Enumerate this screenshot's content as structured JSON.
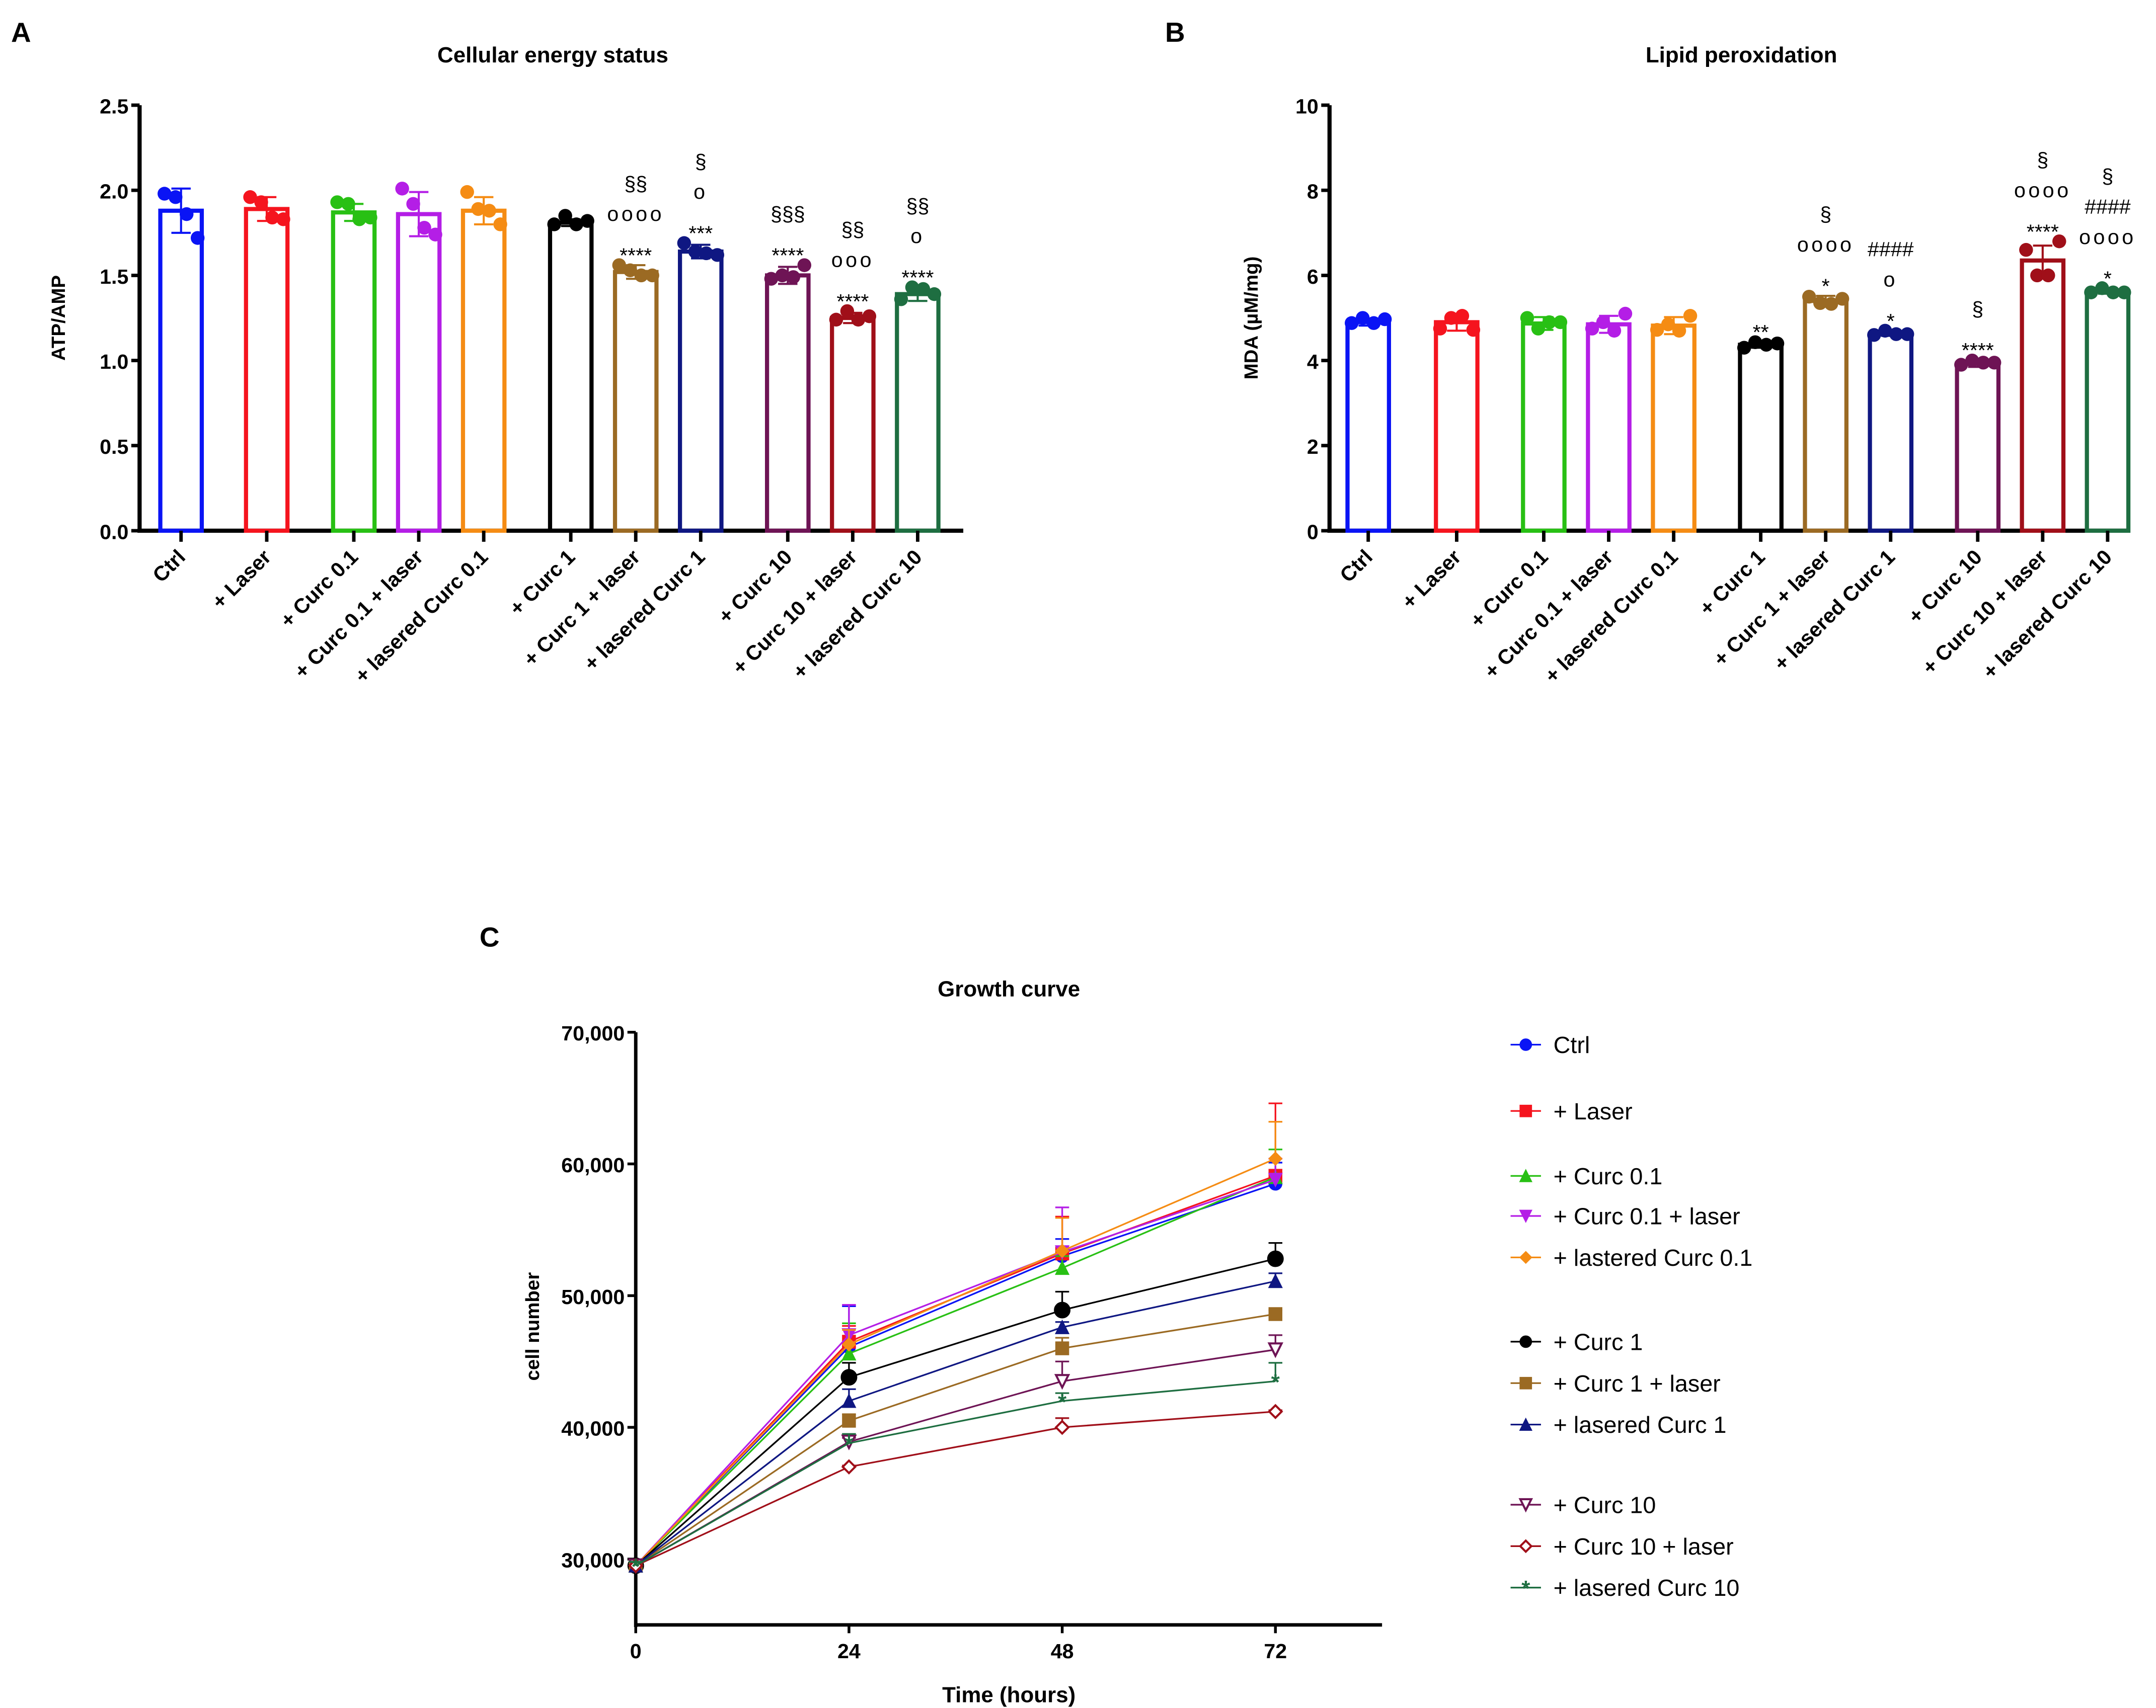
{
  "chart_data": [
    {
      "panel": "A",
      "type": "bar",
      "title": "Cellular energy status",
      "xlabel": "",
      "ylabel": "ATP/AMP",
      "ylim": [
        0,
        2.5
      ],
      "yticks": [
        "0.0",
        "0.5",
        "1.0",
        "1.5",
        "2.0",
        "2.5"
      ],
      "categories": [
        "Ctrl",
        "+ Laser",
        "+ Curc 0.1",
        "+ Curc 0.1 + laser",
        "+ lasered Curc 0.1",
        "+ Curc 1",
        "+ Curc 1 + laser",
        "+ lasered Curc 1",
        "+ Curc 10",
        "+ Curc 10 + laser",
        "+ lasered Curc 10"
      ],
      "values": [
        1.88,
        1.89,
        1.87,
        1.86,
        1.88,
        1.81,
        1.52,
        1.64,
        1.5,
        1.25,
        1.39
      ],
      "sd": [
        0.13,
        0.07,
        0.05,
        0.13,
        0.08,
        0.02,
        0.04,
        0.04,
        0.05,
        0.03,
        0.04
      ],
      "points": [
        [
          1.98,
          1.96,
          1.86,
          1.72
        ],
        [
          1.96,
          1.93,
          1.84,
          1.83
        ],
        [
          1.93,
          1.92,
          1.83,
          1.84
        ],
        [
          2.01,
          1.92,
          1.78,
          1.74
        ],
        [
          1.99,
          1.89,
          1.88,
          1.8
        ],
        [
          1.8,
          1.85,
          1.8,
          1.82
        ],
        [
          1.56,
          1.53,
          1.5,
          1.5
        ],
        [
          1.69,
          1.64,
          1.63,
          1.62
        ],
        [
          1.48,
          1.5,
          1.49,
          1.56
        ],
        [
          1.24,
          1.29,
          1.24,
          1.26
        ],
        [
          1.36,
          1.43,
          1.42,
          1.39
        ]
      ],
      "annotations": [
        [],
        [],
        [],
        [],
        [],
        [],
        [
          "§§",
          "oooo",
          "****"
        ],
        [
          "§",
          "o",
          "***"
        ],
        [
          "§§§",
          "****"
        ],
        [
          "§§",
          "ooo",
          "****"
        ],
        [
          "§§",
          "o",
          "****"
        ]
      ]
    },
    {
      "panel": "B",
      "type": "bar",
      "title": "Lipid peroxidation",
      "xlabel": "",
      "ylabel": "MDA (µM/mg)",
      "ylim": [
        0,
        10
      ],
      "yticks": [
        "0",
        "2",
        "4",
        "6",
        "8",
        "10"
      ],
      "categories": [
        "Ctrl",
        "+ Laser",
        "+ Curc 0.1",
        "+ Curc 0.1 + laser",
        "+ lasered Curc 0.1",
        "+ Curc 1",
        "+ Curc 1 + laser",
        "+ lasered Curc 1",
        "+ Curc 10",
        "+ Curc 10 + laser",
        "+ lasered Curc 10"
      ],
      "values": [
        4.9,
        4.9,
        4.87,
        4.85,
        4.82,
        4.37,
        5.4,
        4.63,
        3.93,
        6.35,
        5.63
      ],
      "sd": [
        0.08,
        0.2,
        0.15,
        0.2,
        0.2,
        0.07,
        0.12,
        0.05,
        0.08,
        0.35,
        0.06
      ],
      "points": [
        [
          4.88,
          5.0,
          4.88,
          4.97
        ],
        [
          4.75,
          5.0,
          5.05,
          4.72
        ],
        [
          5.0,
          4.75,
          4.9,
          4.9
        ],
        [
          4.75,
          4.9,
          4.7,
          5.1
        ],
        [
          4.72,
          4.85,
          4.7,
          5.05
        ],
        [
          4.3,
          4.43,
          4.37,
          4.4
        ],
        [
          5.5,
          5.35,
          5.33,
          5.45
        ],
        [
          4.6,
          4.7,
          4.62,
          4.62
        ],
        [
          3.9,
          4.0,
          3.95,
          3.95
        ],
        [
          6.6,
          6.0,
          6.0,
          6.8
        ],
        [
          5.6,
          5.7,
          5.6,
          5.6
        ]
      ],
      "annotations": [
        [],
        [],
        [],
        [],
        [],
        [
          "**"
        ],
        [
          "§",
          "oooo",
          "*"
        ],
        [
          "####",
          "o",
          "*"
        ],
        [
          "§",
          "****"
        ],
        [
          "§",
          "oooo",
          "****"
        ],
        [
          "§",
          "####",
          "oooo",
          "*"
        ]
      ]
    },
    {
      "panel": "C",
      "type": "line",
      "title": "Growth curve",
      "xlabel": "Time (hours)",
      "ylabel": "cell number",
      "xlim": [
        0,
        84
      ],
      "ylim": [
        25000,
        70000
      ],
      "xticks": [
        "0",
        "24",
        "48",
        "72"
      ],
      "yticks": [
        "30,000",
        "40,000",
        "50,000",
        "60,000",
        "70,000"
      ],
      "x": [
        0,
        24,
        48,
        72
      ],
      "series": [
        {
          "name": "Ctrl",
          "marker": "circle",
          "values": [
            29500,
            46100,
            53000,
            58500
          ],
          "sd": [
            300,
            3100,
            1300,
            1600
          ]
        },
        {
          "name": "+ Laser",
          "marker": "square",
          "values": [
            29500,
            46500,
            53200,
            59100
          ],
          "sd": [
            300,
            1200,
            2800,
            5500
          ]
        },
        {
          "name": "+ Curc 0.1",
          "marker": "triangle",
          "values": [
            29500,
            45600,
            52100,
            59000
          ],
          "sd": [
            300,
            2300,
            900,
            2100
          ]
        },
        {
          "name": "+ Curc 0.1 + laser",
          "marker": "triangle-down",
          "values": [
            29500,
            47000,
            53300,
            58800
          ],
          "sd": [
            300,
            2300,
            3400,
            1600
          ]
        },
        {
          "name": "+ lastered Curc 0.1",
          "marker": "diamond",
          "values": [
            29500,
            46300,
            53400,
            60400
          ],
          "sd": [
            300,
            1100,
            2500,
            2800
          ]
        },
        {
          "name": "+ Curc 1",
          "marker": "circle",
          "values": [
            29500,
            43800,
            48900,
            52800
          ],
          "sd": [
            300,
            1100,
            1400,
            1200
          ]
        },
        {
          "name": "+ Curc 1 + laser",
          "marker": "square",
          "values": [
            29500,
            40500,
            46000,
            48600
          ],
          "sd": [
            300,
            500,
            800,
            300
          ]
        },
        {
          "name": "+ lasered Curc 1",
          "marker": "triangle",
          "values": [
            29500,
            42000,
            47600,
            51100
          ],
          "sd": [
            300,
            900,
            400,
            600
          ]
        },
        {
          "name": "+ Curc 10",
          "marker": "triangle-down-open",
          "values": [
            29500,
            38900,
            43500,
            45900
          ],
          "sd": [
            300,
            300,
            1500,
            1100
          ]
        },
        {
          "name": "+ Curc 10 + laser",
          "marker": "diamond-open",
          "values": [
            29500,
            37000,
            40000,
            41200
          ],
          "sd": [
            300,
            100,
            700,
            100
          ]
        },
        {
          "name": "+ lasered Curc 10",
          "marker": "star",
          "values": [
            29500,
            38800,
            42000,
            43500
          ],
          "sd": [
            300,
            700,
            600,
            1400
          ]
        }
      ],
      "legend_position": "right"
    }
  ],
  "colors": [
    "#0a14f5",
    "#f5141e",
    "#28c014",
    "#b41ee6",
    "#f58c14",
    "#000000",
    "#9b6a23",
    "#0f1782",
    "#6e1455",
    "#a00f19",
    "#1e6e41"
  ]
}
